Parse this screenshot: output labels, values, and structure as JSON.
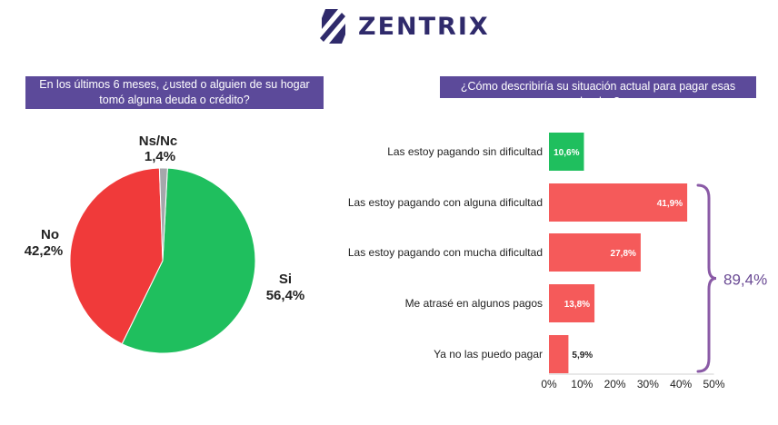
{
  "brand": {
    "name": "ZENTRIX"
  },
  "colors": {
    "header_bg": "#5c4a9a",
    "green": "#1fbf5e",
    "red": "#f03a3a",
    "gray": "#a5a7ab",
    "bar_red": "#f55a5a",
    "bracket": "#8a5aa6"
  },
  "left_question": "En los últimos 6 meses, ¿usted o alguien de su hogar tomó alguna deuda o crédito?",
  "right_question": "¿Cómo describiría su situación actual para pagar esas deudas?",
  "bracket_label": "89,4%",
  "chart_data": [
    {
      "type": "pie",
      "title": "En los últimos 6 meses, ¿usted o alguien de su hogar tomó alguna deuda o crédito?",
      "slices": [
        {
          "name": "Si",
          "value": 56.4,
          "label": "56,4%",
          "color": "#1fbf5e"
        },
        {
          "name": "No",
          "value": 42.2,
          "label": "42,2%",
          "color": "#f03a3a"
        },
        {
          "name": "Ns/Nc",
          "value": 1.4,
          "label": "1,4%",
          "color": "#a5a7ab"
        }
      ]
    },
    {
      "type": "bar",
      "orientation": "horizontal",
      "title": "¿Cómo describiría su situación actual para pagar esas deudas?",
      "categories": [
        "Las estoy pagando sin dificultad",
        "Las estoy pagando con alguna dificultad",
        "Las estoy pagando con mucha dificultad",
        "Me atrasé en algunos pagos",
        "Ya no las puedo pagar"
      ],
      "values": [
        10.6,
        41.9,
        27.8,
        13.8,
        5.9
      ],
      "value_labels": [
        "10,6%",
        "41,9%",
        "27,8%",
        "13,8%",
        "5,9%"
      ],
      "colors": [
        "#1fbf5e",
        "#f55a5a",
        "#f55a5a",
        "#f55a5a",
        "#f55a5a"
      ],
      "xlim": [
        0,
        50
      ],
      "xticks": [
        0,
        10,
        20,
        30,
        40,
        50
      ],
      "xtick_labels": [
        "0%",
        "10%",
        "20%",
        "30%",
        "40%",
        "50%"
      ],
      "annotation": "89,4%"
    }
  ]
}
